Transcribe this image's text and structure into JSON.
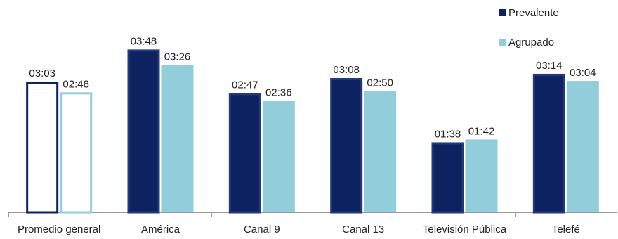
{
  "chart_data": {
    "type": "bar",
    "categories": [
      "Promedio general",
      "América",
      "Canal 9",
      "Canal 13",
      "Televisión Pública",
      "Telefé"
    ],
    "series": [
      {
        "name": "Prevalente",
        "values": [
          3.05,
          3.8,
          2.7833,
          3.1333,
          1.6333,
          3.2333
        ],
        "labels": [
          "03:03",
          "03:48",
          "02:47",
          "03:08",
          "01:38",
          "03:14"
        ],
        "color": "#0d2260"
      },
      {
        "name": "Agrupado",
        "values": [
          2.8,
          3.4333,
          2.6,
          2.8333,
          1.7,
          3.0667
        ],
        "labels": [
          "02:48",
          "03:26",
          "02:36",
          "02:50",
          "01:42",
          "03:04"
        ],
        "color": "#92cddc"
      }
    ],
    "highlight_category": "Promedio general",
    "highlight_style": "outline",
    "ylim": [
      0,
      4.2
    ],
    "grid": false,
    "legend_position": "top-right",
    "title": "",
    "xlabel": "",
    "ylabel": ""
  }
}
